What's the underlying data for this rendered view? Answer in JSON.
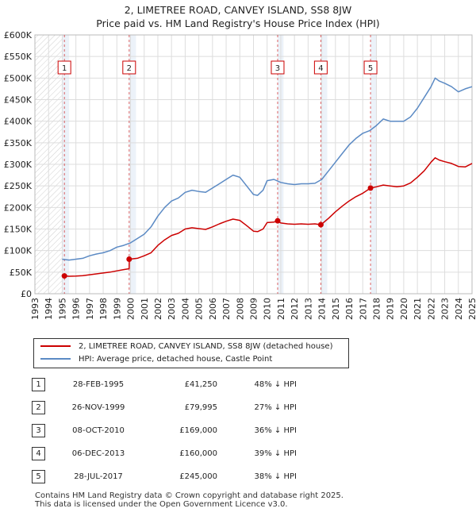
{
  "title_line1": "2, LIMETREE ROAD, CANVEY ISLAND, SS8 8JW",
  "title_line2": "Price paid vs. HM Land Registry's House Price Index (HPI)",
  "chart_data": {
    "type": "line",
    "title": "2, LIMETREE ROAD, CANVEY ISLAND, SS8 8JW — Price paid vs. HM Land Registry's House Price Index (HPI)",
    "xlim": [
      1993,
      2025
    ],
    "ylim": [
      0,
      600000
    ],
    "x_ticks": [
      "1993",
      "1994",
      "1995",
      "1996",
      "1997",
      "1998",
      "1999",
      "2000",
      "2001",
      "2002",
      "2003",
      "2004",
      "2005",
      "2006",
      "2007",
      "2008",
      "2009",
      "2010",
      "2011",
      "2012",
      "2013",
      "2014",
      "2015",
      "2016",
      "2017",
      "2018",
      "2019",
      "2020",
      "2021",
      "2022",
      "2023",
      "2024",
      "2025"
    ],
    "y_ticks": [
      {
        "value": 0,
        "label": "£0"
      },
      {
        "value": 50000,
        "label": "£50K"
      },
      {
        "value": 100000,
        "label": "£100K"
      },
      {
        "value": 150000,
        "label": "£150K"
      },
      {
        "value": 200000,
        "label": "£200K"
      },
      {
        "value": 250000,
        "label": "£250K"
      },
      {
        "value": 300000,
        "label": "£300K"
      },
      {
        "value": 350000,
        "label": "£350K"
      },
      {
        "value": 400000,
        "label": "£400K"
      },
      {
        "value": 450000,
        "label": "£450K"
      },
      {
        "value": 500000,
        "label": "£500K"
      },
      {
        "value": 550000,
        "label": "£550K"
      },
      {
        "value": 600000,
        "label": "£600K"
      }
    ],
    "grid": true,
    "hpi_series": {
      "name": "HPI: Average price, detached house, Castle Point",
      "color": "#5b8ac4",
      "x": [
        1995.0,
        1995.5,
        1996.0,
        1996.5,
        1997.0,
        1997.5,
        1998.0,
        1998.5,
        1999.0,
        1999.5,
        2000.0,
        2000.5,
        2001.0,
        2001.5,
        2002.0,
        2002.5,
        2003.0,
        2003.5,
        2004.0,
        2004.5,
        2005.0,
        2005.5,
        2006.0,
        2006.5,
        2007.0,
        2007.5,
        2008.0,
        2008.5,
        2009.0,
        2009.3,
        2009.7,
        2010.0,
        2010.5,
        2011.0,
        2011.5,
        2012.0,
        2012.5,
        2013.0,
        2013.5,
        2014.0,
        2014.5,
        2015.0,
        2015.5,
        2016.0,
        2016.5,
        2017.0,
        2017.5,
        2018.0,
        2018.5,
        2019.0,
        2019.5,
        2020.0,
        2020.5,
        2021.0,
        2021.5,
        2022.0,
        2022.3,
        2022.6,
        2023.0,
        2023.5,
        2024.0,
        2024.5,
        2025.0
      ],
      "values": [
        80000,
        78000,
        80000,
        82000,
        88000,
        92000,
        95000,
        100000,
        108000,
        112000,
        118000,
        128000,
        138000,
        155000,
        180000,
        200000,
        215000,
        222000,
        235000,
        240000,
        237000,
        235000,
        245000,
        255000,
        265000,
        275000,
        270000,
        250000,
        230000,
        228000,
        240000,
        262000,
        265000,
        258000,
        255000,
        253000,
        255000,
        255000,
        256000,
        265000,
        285000,
        305000,
        325000,
        345000,
        360000,
        372000,
        378000,
        390000,
        405000,
        400000,
        400000,
        400000,
        410000,
        430000,
        455000,
        480000,
        500000,
        493000,
        488000,
        480000,
        468000,
        475000,
        480000
      ]
    },
    "property_series": {
      "name": "2, LIMETREE ROAD, CANVEY ISLAND, SS8 8JW (detached house)",
      "color": "#cc0000",
      "x": [
        1995.16,
        1995.5,
        1996.0,
        1996.5,
        1997.0,
        1997.5,
        1998.0,
        1998.5,
        1999.0,
        1999.5,
        1999.9,
        1999.91,
        2000.5,
        2001.0,
        2001.5,
        2002.0,
        2002.5,
        2003.0,
        2003.5,
        2004.0,
        2004.5,
        2005.0,
        2005.5,
        2006.0,
        2006.5,
        2007.0,
        2007.5,
        2008.0,
        2008.5,
        2009.0,
        2009.3,
        2009.7,
        2010.0,
        2010.5,
        2010.77,
        2010.78,
        2011.0,
        2011.5,
        2012.0,
        2012.5,
        2013.0,
        2013.5,
        2013.93,
        2013.94,
        2014.5,
        2015.0,
        2015.5,
        2016.0,
        2016.5,
        2017.0,
        2017.57,
        2017.58,
        2018.0,
        2018.5,
        2019.0,
        2019.5,
        2020.0,
        2020.5,
        2021.0,
        2021.5,
        2022.0,
        2022.3,
        2022.6,
        2023.0,
        2023.5,
        2024.0,
        2024.5,
        2025.0
      ],
      "values": [
        41250,
        40500,
        41000,
        42000,
        44000,
        46000,
        48000,
        50000,
        53000,
        56000,
        58000,
        79995,
        82000,
        88000,
        95000,
        112000,
        125000,
        135000,
        140000,
        150000,
        153000,
        151000,
        149000,
        155000,
        162000,
        168000,
        173000,
        170000,
        158000,
        145000,
        144000,
        150000,
        165000,
        166000,
        169000,
        169000,
        164000,
        162000,
        161000,
        162000,
        161000,
        162000,
        160000,
        160000,
        175000,
        190000,
        203000,
        215000,
        225000,
        233000,
        245000,
        245000,
        248000,
        252000,
        250000,
        248000,
        250000,
        257000,
        270000,
        285000,
        305000,
        315000,
        310000,
        306000,
        302000,
        295000,
        294000,
        302000
      ]
    },
    "transactions": [
      {
        "marker": "1",
        "date": "28-FEB-1995",
        "x": 1995.16,
        "price": 41250,
        "price_label": "£41,250",
        "hpi_diff": "48% ↓ HPI"
      },
      {
        "marker": "2",
        "date": "26-NOV-1999",
        "x": 1999.9,
        "price": 79995,
        "price_label": "£79,995",
        "hpi_diff": "27% ↓ HPI"
      },
      {
        "marker": "3",
        "date": "08-OCT-2010",
        "x": 2010.77,
        "price": 169000,
        "price_label": "£169,000",
        "hpi_diff": "36% ↓ HPI"
      },
      {
        "marker": "4",
        "date": "06-DEC-2013",
        "x": 2013.93,
        "price": 160000,
        "price_label": "£160,000",
        "hpi_diff": "39% ↓ HPI"
      },
      {
        "marker": "5",
        "date": "28-JUL-2017",
        "x": 2017.57,
        "price": 245000,
        "price_label": "£245,000",
        "hpi_diff": "38% ↓ HPI"
      }
    ]
  },
  "legend": {
    "property_label": "2, LIMETREE ROAD, CANVEY ISLAND, SS8 8JW (detached house)",
    "hpi_label": "HPI: Average price, detached house, Castle Point"
  },
  "footer_line1": "Contains HM Land Registry data © Crown copyright and database right 2025.",
  "footer_line2": "This data is licensed under the Open Government Licence v3.0.",
  "colors": {
    "property": "#cc0000",
    "hpi": "#5b8ac4",
    "grid": "#dddddd",
    "highlight": "#e4ecf6"
  }
}
